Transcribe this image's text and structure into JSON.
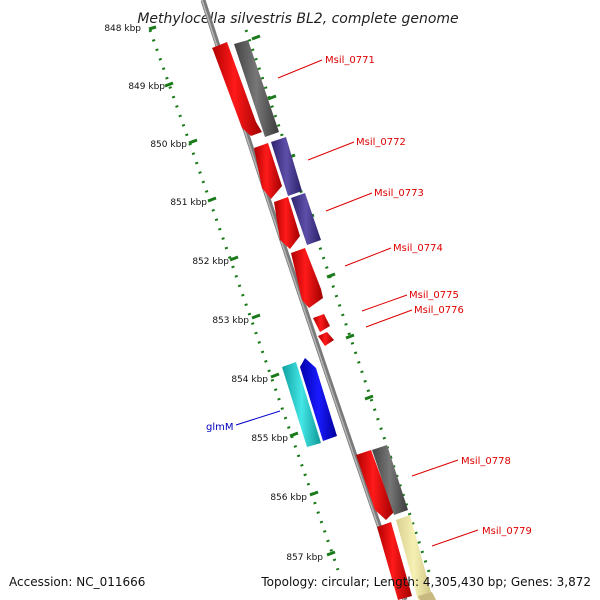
{
  "title": "Methylocella silvestris BL2, complete genome",
  "accession": "Accession: NC_011666",
  "topology": "Topology: circular; Length: 4,305,430 bp; Genes: 3,872",
  "ticks": [
    "848 kbp",
    "849 kbp",
    "850 kbp",
    "851 kbp",
    "852 kbp",
    "853 kbp",
    "854 kbp",
    "855 kbp",
    "856 kbp",
    "857 kbp"
  ],
  "genes": [
    {
      "label": "Msil_0771",
      "color": "#dd0000"
    },
    {
      "label": "Msil_0772",
      "color": "#dd0000"
    },
    {
      "label": "Msil_0773",
      "color": "#dd0000"
    },
    {
      "label": "Msil_0774",
      "color": "#dd0000"
    },
    {
      "label": "Msil_0775",
      "color": "#dd0000"
    },
    {
      "label": "Msil_0776",
      "color": "#dd0000"
    },
    {
      "label": "glmM",
      "color": "#0000bb"
    },
    {
      "label": "Msil_0778",
      "color": "#dd0000"
    },
    {
      "label": "Msil_0779",
      "color": "#dd0000"
    }
  ],
  "colors": {
    "backbone": "#808080",
    "cds": "#ff0000",
    "gray_feature": "#555555",
    "purple_feature": "#4a3a8a",
    "cyan_feature": "#22cccc",
    "blue_feature": "#0000ee",
    "yellow_feature": "#eee8a0",
    "tick_color": "#1a7a1a"
  }
}
